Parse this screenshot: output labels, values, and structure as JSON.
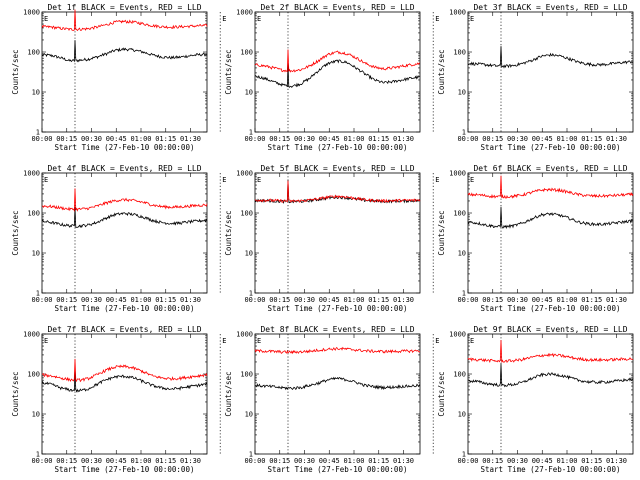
{
  "chart_data": [
    {
      "type": "line",
      "title": "Det 1f BLACK = Events, RED = LLD",
      "xlabel": "Start Time (27-Feb-10 00:00:00)",
      "ylabel": "Counts/sec",
      "ylim": [
        1,
        1000
      ],
      "log_y": true,
      "marker_label": "E",
      "marker_times": [
        20,
        108
      ],
      "spike_time": 20,
      "series": [
        {
          "name": "Events",
          "color": "#000000",
          "values": [
            85,
            82,
            72,
            60,
            62,
            66,
            75,
            90,
            110,
            118,
            112,
            100,
            85,
            76,
            72,
            74,
            80,
            85,
            88
          ]
        },
        {
          "name": "LLD",
          "color": "#ff0000",
          "values": [
            430,
            420,
            390,
            370,
            370,
            380,
            420,
            480,
            560,
            580,
            560,
            510,
            460,
            430,
            420,
            425,
            440,
            450,
            460
          ]
        }
      ]
    },
    {
      "type": "line",
      "title": "Det 2f BLACK = Events, RED = LLD",
      "xlabel": "Start Time (27-Feb-10 00:00:00)",
      "ylabel": "Counts/sec",
      "ylim": [
        1,
        1000
      ],
      "log_y": true,
      "marker_label": "E",
      "marker_times": [
        20,
        108
      ],
      "spike_time": 20,
      "series": [
        {
          "name": "Events",
          "color": "#000000",
          "values": [
            25,
            22,
            18,
            15,
            14,
            16,
            22,
            35,
            52,
            60,
            55,
            40,
            28,
            20,
            17,
            18,
            20,
            22,
            24
          ]
        },
        {
          "name": "LLD",
          "color": "#ff0000",
          "values": [
            48,
            45,
            40,
            35,
            34,
            36,
            45,
            62,
            88,
            100,
            92,
            72,
            52,
            42,
            38,
            40,
            44,
            48,
            52
          ]
        }
      ]
    },
    {
      "type": "line",
      "title": "Det 3f BLACK = Events, RED = LLD",
      "xlabel": "Start Time (27-Feb-10 00:00:00)",
      "ylabel": "Counts/sec",
      "ylim": [
        1,
        1000
      ],
      "log_y": true,
      "marker_label": "E",
      "marker_times": [
        20,
        108
      ],
      "spike_time": 20,
      "series": [
        {
          "name": "Events",
          "color": "#000000",
          "values": [
            52,
            50,
            48,
            45,
            44,
            46,
            52,
            62,
            78,
            85,
            80,
            68,
            56,
            50,
            48,
            49,
            52,
            55,
            58
          ]
        }
      ]
    },
    {
      "type": "line",
      "title": "Det 4f BLACK = Events, RED = LLD",
      "xlabel": "Start Time (27-Feb-10 00:00:00)",
      "ylabel": "Counts/sec",
      "ylim": [
        1,
        1000
      ],
      "log_y": true,
      "marker_label": "E",
      "marker_times": [
        20,
        108
      ],
      "spike_time": 20,
      "series": [
        {
          "name": "Events",
          "color": "#000000",
          "values": [
            62,
            58,
            52,
            48,
            47,
            50,
            58,
            75,
            92,
            98,
            92,
            80,
            66,
            58,
            55,
            56,
            60,
            63,
            66
          ]
        },
        {
          "name": "LLD",
          "color": "#ff0000",
          "values": [
            150,
            145,
            135,
            125,
            124,
            130,
            148,
            178,
            205,
            215,
            205,
            185,
            160,
            145,
            140,
            142,
            148,
            155,
            160
          ]
        }
      ]
    },
    {
      "type": "line",
      "title": "Det 5f BLACK = Events, RED = LLD",
      "xlabel": "Start Time (27-Feb-10 00:00:00)",
      "ylabel": "Counts/sec",
      "ylim": [
        1,
        1000
      ],
      "log_y": true,
      "marker_label": "E",
      "marker_times": [
        20,
        108
      ],
      "spike_time": 20,
      "series": [
        {
          "name": "Events",
          "color": "#000000",
          "values": [
            205,
            205,
            200,
            195,
            192,
            196,
            205,
            220,
            240,
            250,
            240,
            222,
            208,
            200,
            196,
            198,
            200,
            202,
            205
          ]
        },
        {
          "name": "LLD",
          "color": "#ff0000",
          "values": [
            210,
            210,
            205,
            200,
            198,
            202,
            212,
            228,
            250,
            262,
            252,
            232,
            215,
            206,
            202,
            204,
            206,
            208,
            210
          ]
        }
      ]
    },
    {
      "type": "line",
      "title": "Det 6f BLACK = Events, RED = LLD",
      "xlabel": "Start Time (27-Feb-10 00:00:00)",
      "ylabel": "Counts/sec",
      "ylim": [
        1,
        1000
      ],
      "log_y": true,
      "marker_label": "E",
      "marker_times": [
        20,
        108
      ],
      "spike_time": 20,
      "series": [
        {
          "name": "Events",
          "color": "#000000",
          "values": [
            60,
            56,
            50,
            46,
            45,
            48,
            56,
            72,
            90,
            95,
            88,
            74,
            60,
            54,
            52,
            53,
            56,
            60,
            64
          ]
        },
        {
          "name": "LLD",
          "color": "#ff0000",
          "values": [
            290,
            285,
            270,
            258,
            255,
            262,
            285,
            330,
            375,
            385,
            370,
            330,
            290,
            272,
            265,
            268,
            275,
            285,
            292
          ]
        }
      ]
    },
    {
      "type": "line",
      "title": "Det 7f BLACK = Events, RED = LLD",
      "xlabel": "Start Time (27-Feb-10 00:00:00)",
      "ylabel": "Counts/sec",
      "ylim": [
        1,
        1000
      ],
      "log_y": true,
      "marker_label": "E",
      "marker_times": [
        20,
        108
      ],
      "spike_time": 20,
      "series": [
        {
          "name": "Events",
          "color": "#000000",
          "values": [
            60,
            55,
            45,
            40,
            38,
            42,
            55,
            72,
            85,
            88,
            80,
            65,
            52,
            45,
            42,
            44,
            48,
            52,
            56
          ]
        },
        {
          "name": "LLD",
          "color": "#ff0000",
          "values": [
            95,
            90,
            80,
            72,
            70,
            76,
            95,
            125,
            150,
            155,
            140,
            115,
            90,
            80,
            76,
            78,
            84,
            90,
            96
          ]
        }
      ]
    },
    {
      "type": "line",
      "title": "Det 8f BLACK = Events, RED = LLD",
      "xlabel": "Start Time (27-Feb-10 00:00:00)",
      "ylabel": "Counts/sec",
      "ylim": [
        1,
        1000
      ],
      "log_y": true,
      "marker_label": "E",
      "marker_times": [
        20,
        108
      ],
      "spike_time": null,
      "series": [
        {
          "name": "Events",
          "color": "#000000",
          "values": [
            52,
            50,
            48,
            45,
            44,
            46,
            52,
            60,
            72,
            78,
            72,
            62,
            52,
            48,
            46,
            47,
            49,
            50,
            52
          ]
        },
        {
          "name": "LLD",
          "color": "#ff0000",
          "values": [
            380,
            375,
            365,
            355,
            352,
            358,
            372,
            395,
            420,
            430,
            420,
            400,
            380,
            370,
            366,
            368,
            372,
            376,
            380
          ]
        }
      ]
    },
    {
      "type": "line",
      "title": "Det 9f BLACK = Events, RED = LLD",
      "xlabel": "Start Time (27-Feb-10 00:00:00)",
      "ylabel": "Counts/sec",
      "ylim": [
        1,
        1000
      ],
      "log_y": true,
      "marker_label": "E",
      "marker_times": [
        20,
        108
      ],
      "spike_time": 20,
      "series": [
        {
          "name": "Events",
          "color": "#000000",
          "values": [
            68,
            65,
            58,
            54,
            52,
            55,
            62,
            78,
            95,
            100,
            94,
            82,
            70,
            64,
            62,
            63,
            66,
            70,
            74
          ]
        },
        {
          "name": "LLD",
          "color": "#ff0000",
          "values": [
            235,
            230,
            220,
            212,
            210,
            216,
            232,
            262,
            292,
            300,
            290,
            265,
            240,
            228,
            224,
            226,
            230,
            236,
            242
          ]
        }
      ]
    }
  ],
  "shared": {
    "x_ticks": [
      "00:00",
      "00:15",
      "00:30",
      "00:45",
      "01:00",
      "01:15",
      "01:30"
    ],
    "x_tick_minutes": [
      0,
      15,
      30,
      45,
      60,
      75,
      90
    ],
    "x_range_minutes": [
      0,
      100
    ],
    "y_ticks": [
      "1",
      "10",
      "100",
      "1000"
    ]
  }
}
